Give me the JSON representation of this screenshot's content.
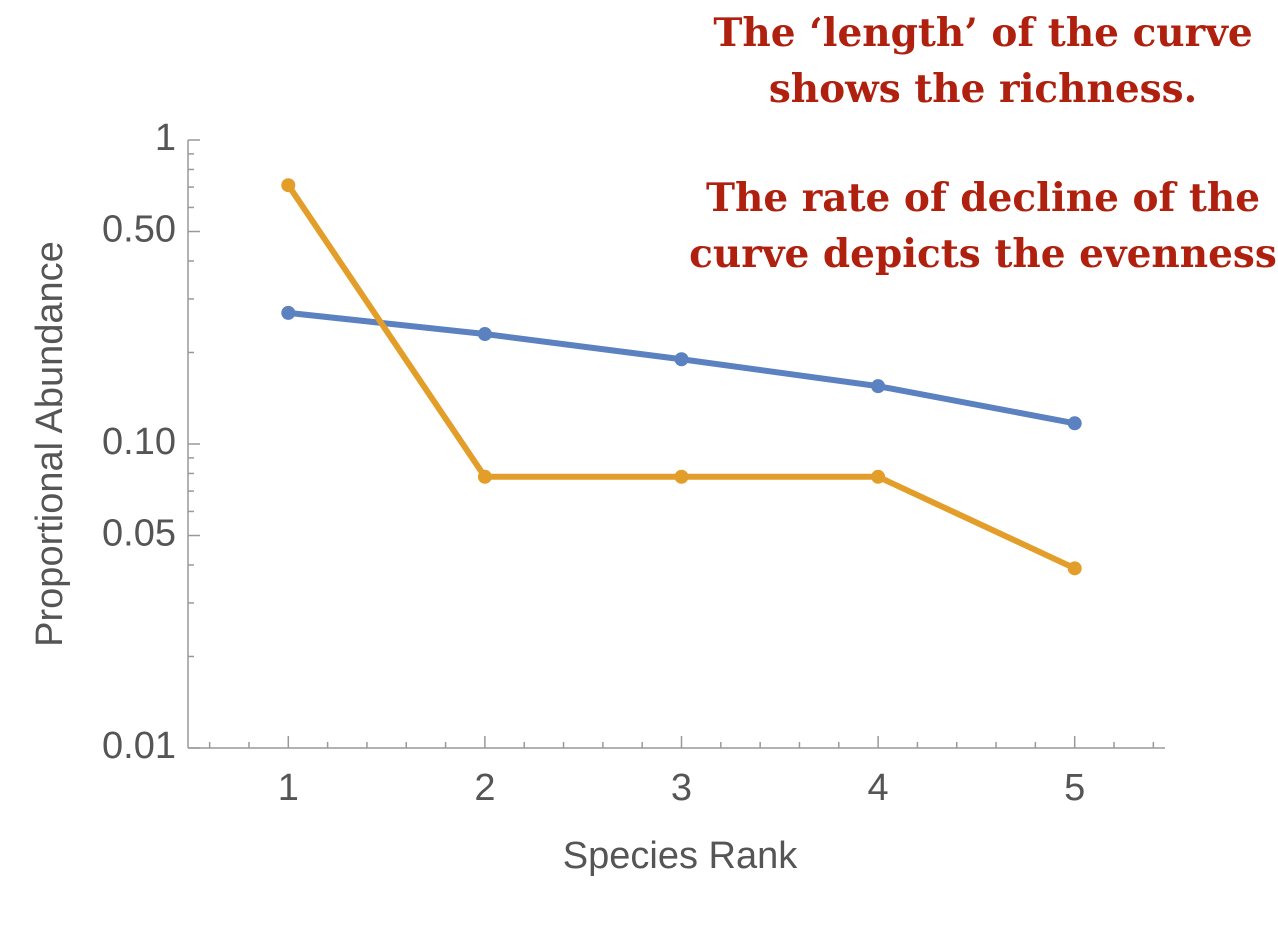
{
  "chart_data": {
    "type": "line",
    "xlabel": "Species Rank",
    "ylabel": "Proportional Abundance",
    "x": [
      1,
      2,
      3,
      4,
      5
    ],
    "series": [
      {
        "color": "#5b81c0",
        "values": [
          0.27,
          0.23,
          0.19,
          0.155,
          0.117
        ]
      },
      {
        "color": "#e39e2a",
        "values": [
          0.71,
          0.078,
          0.078,
          0.078,
          0.039
        ]
      }
    ],
    "ylog": true,
    "xlim": [
      0.5,
      5.5
    ],
    "ylim": [
      0.01,
      1
    ],
    "xticks": [
      1,
      2,
      3,
      4,
      5
    ],
    "yticks": [
      0.01,
      0.05,
      {
        "value": 0.1,
        "label": "0.10"
      },
      {
        "value": 0.5,
        "label": "0.50"
      },
      1
    ],
    "xminorticks": [
      0.6,
      0.8,
      1.2,
      1.4,
      1.6,
      1.8,
      2.2,
      2.4,
      2.6,
      2.8,
      3.2,
      3.4,
      3.6,
      3.8,
      4.2,
      4.4,
      4.6,
      4.8,
      5.2,
      5.4
    ],
    "yminorticks": [
      0.02,
      0.03,
      0.04,
      0.06,
      0.07,
      0.08,
      0.09,
      0.2,
      0.3,
      0.4,
      0.6,
      0.7,
      0.8,
      0.9
    ],
    "annotations": [
      {
        "lines": [
          "The ‘length’ of the curve",
          "shows the richness."
        ]
      },
      {
        "lines": [
          "The rate of decline of the",
          "curve depicts the evenness"
        ]
      }
    ]
  }
}
